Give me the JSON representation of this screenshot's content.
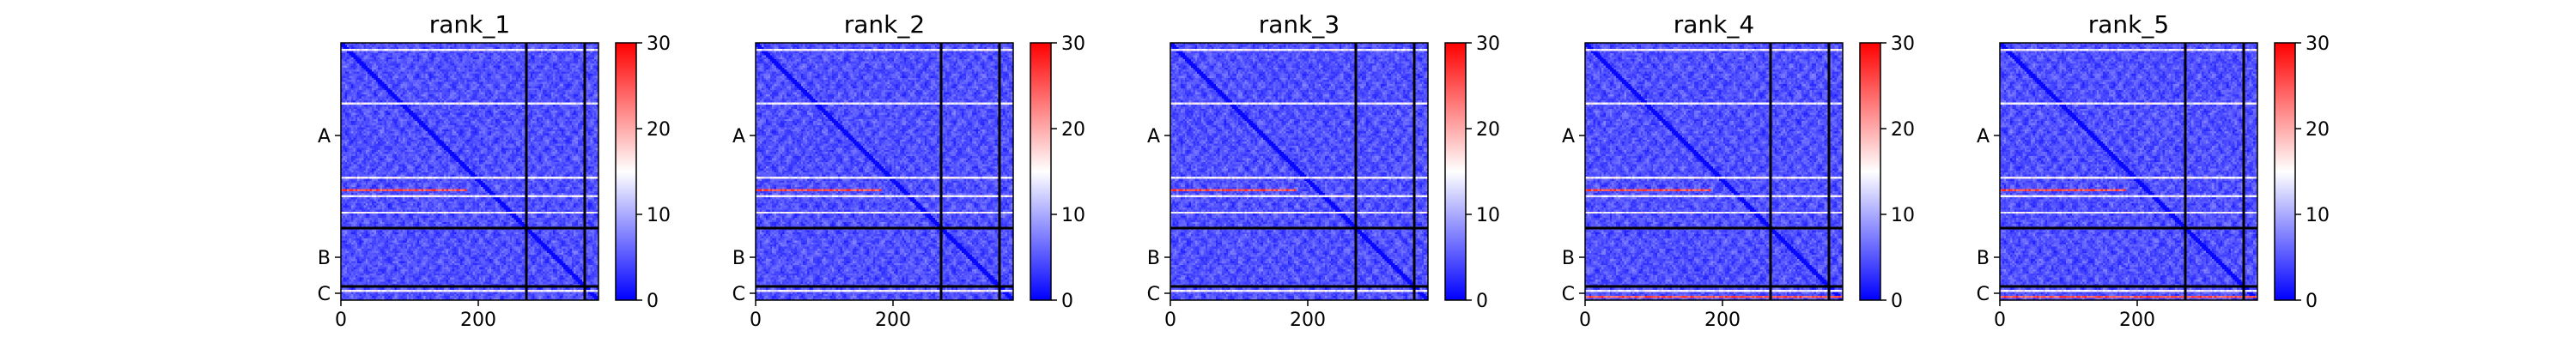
{
  "chart_data": [
    {
      "type": "heatmap",
      "title": "rank_1",
      "x_ticks": [
        0,
        200
      ],
      "y_ticks": [
        "A",
        "B",
        "C"
      ],
      "segments": [
        {
          "label": "A",
          "start": 0,
          "end": 270
        },
        {
          "label": "B",
          "start": 270,
          "end": 355
        },
        {
          "label": "C",
          "start": 355,
          "end": 375
        }
      ],
      "size": 375,
      "colorbar": {
        "min": 0,
        "max": 30,
        "ticks": [
          0,
          10,
          20,
          30
        ],
        "colormap": "bwr"
      },
      "high_error_rows": [
        10,
        88,
        195,
        222,
        245,
        360
      ],
      "bright_row_segments": [
        {
          "row": 212,
          "from": 0,
          "to": 180
        }
      ]
    },
    {
      "type": "heatmap",
      "title": "rank_2",
      "x_ticks": [
        0,
        200
      ],
      "y_ticks": [
        "A",
        "B",
        "C"
      ],
      "segments": [
        {
          "label": "A",
          "start": 0,
          "end": 270
        },
        {
          "label": "B",
          "start": 270,
          "end": 355
        },
        {
          "label": "C",
          "start": 355,
          "end": 375
        }
      ],
      "size": 375,
      "colorbar": {
        "min": 0,
        "max": 30,
        "ticks": [
          0,
          10,
          20,
          30
        ],
        "colormap": "bwr"
      },
      "high_error_rows": [
        10,
        88,
        195,
        222,
        245,
        360
      ],
      "bright_row_segments": [
        {
          "row": 212,
          "from": 0,
          "to": 180
        }
      ]
    },
    {
      "type": "heatmap",
      "title": "rank_3",
      "x_ticks": [
        0,
        200
      ],
      "y_ticks": [
        "A",
        "B",
        "C"
      ],
      "segments": [
        {
          "label": "A",
          "start": 0,
          "end": 270
        },
        {
          "label": "B",
          "start": 270,
          "end": 355
        },
        {
          "label": "C",
          "start": 355,
          "end": 375
        }
      ],
      "size": 375,
      "colorbar": {
        "min": 0,
        "max": 30,
        "ticks": [
          0,
          10,
          20,
          30
        ],
        "colormap": "bwr"
      },
      "high_error_rows": [
        10,
        88,
        195,
        222,
        245,
        360
      ],
      "bright_row_segments": [
        {
          "row": 212,
          "from": 0,
          "to": 180
        }
      ]
    },
    {
      "type": "heatmap",
      "title": "rank_4",
      "x_ticks": [
        0,
        200
      ],
      "y_ticks": [
        "A",
        "B",
        "C"
      ],
      "segments": [
        {
          "label": "A",
          "start": 0,
          "end": 270
        },
        {
          "label": "B",
          "start": 270,
          "end": 355
        },
        {
          "label": "C",
          "start": 355,
          "end": 375
        }
      ],
      "size": 375,
      "colorbar": {
        "min": 0,
        "max": 30,
        "ticks": [
          0,
          10,
          20,
          30
        ],
        "colormap": "bwr"
      },
      "high_error_rows": [
        10,
        88,
        195,
        222,
        245,
        360
      ],
      "bright_row_segments": [
        {
          "row": 212,
          "from": 0,
          "to": 180
        },
        {
          "row": 370,
          "from": 0,
          "to": 375
        }
      ]
    },
    {
      "type": "heatmap",
      "title": "rank_5",
      "x_ticks": [
        0,
        200
      ],
      "y_ticks": [
        "A",
        "B",
        "C"
      ],
      "segments": [
        {
          "label": "A",
          "start": 0,
          "end": 270
        },
        {
          "label": "B",
          "start": 270,
          "end": 355
        },
        {
          "label": "C",
          "start": 355,
          "end": 375
        }
      ],
      "size": 375,
      "colorbar": {
        "min": 0,
        "max": 30,
        "ticks": [
          0,
          10,
          20,
          30
        ],
        "colormap": "bwr"
      },
      "high_error_rows": [
        10,
        88,
        195,
        222,
        245,
        360
      ],
      "bright_row_segments": [
        {
          "row": 212,
          "from": 0,
          "to": 180
        },
        {
          "row": 370,
          "from": 0,
          "to": 375
        }
      ]
    }
  ]
}
